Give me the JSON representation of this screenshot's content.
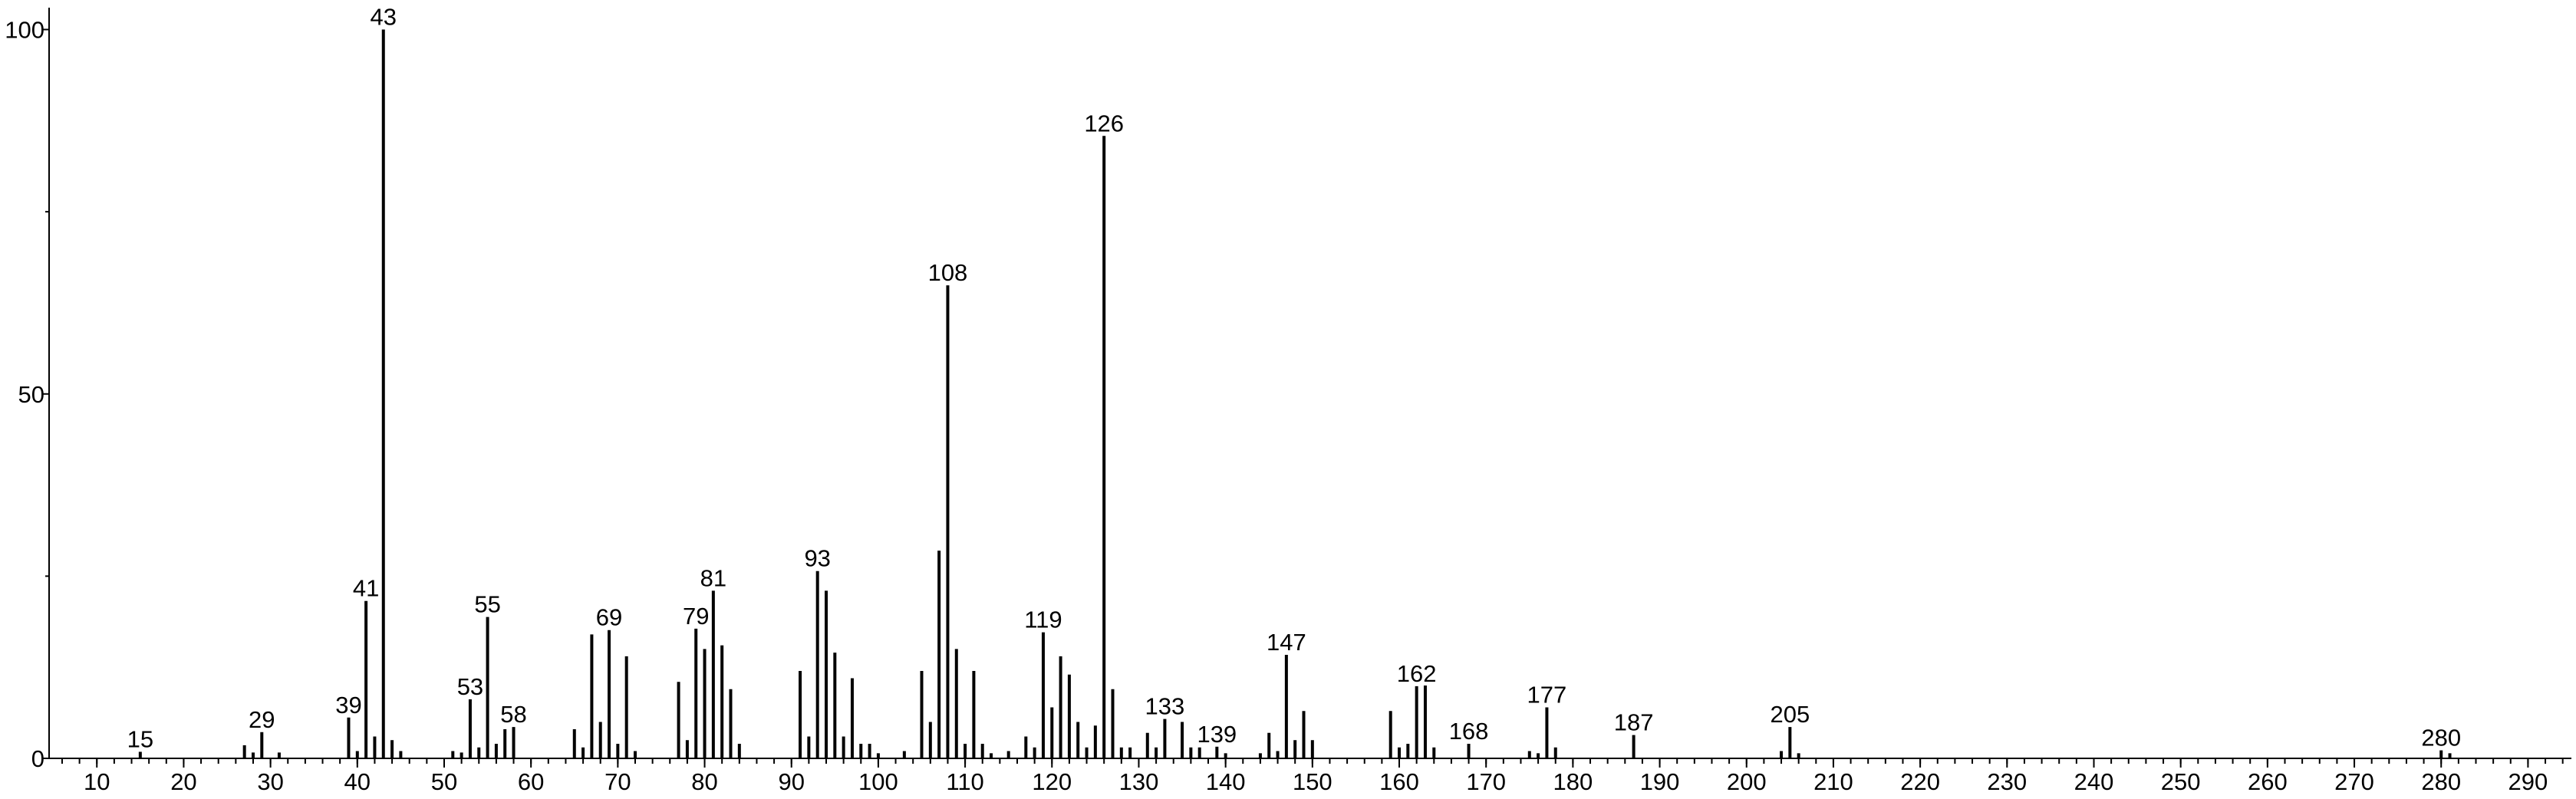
{
  "chart_data": {
    "type": "stick",
    "xlim": [
      4.5,
      295
    ],
    "ylim": [
      0,
      103
    ],
    "xticks": [
      10,
      20,
      30,
      40,
      50,
      60,
      70,
      80,
      90,
      100,
      110,
      120,
      130,
      140,
      150,
      160,
      170,
      180,
      190,
      200,
      210,
      220,
      230,
      240,
      250,
      260,
      270,
      280,
      290
    ],
    "x_minor_step": 2,
    "yticks": [
      0,
      50,
      100
    ],
    "y_minor_ticks": [
      25,
      75
    ],
    "series": [
      {
        "color": "#000000",
        "x_labels": true,
        "x": [
          15,
          29,
          39,
          41,
          43,
          53,
          55,
          58,
          69,
          79,
          81,
          93,
          108,
          119,
          126,
          133,
          139,
          147,
          162,
          168,
          177,
          187,
          205,
          280
        ],
        "values": [
          0.9,
          3.6,
          5.6,
          21.6,
          100,
          8.1,
          19.4,
          4.3,
          17.6,
          17.8,
          23,
          25.7,
          64.9,
          17.3,
          85.4,
          5.4,
          1.6,
          14.2,
          9.9,
          2,
          7,
          3.2,
          4.3,
          1.1
        ]
      },
      {
        "color": "#000000",
        "x_labels": false,
        "x": [
          27,
          28,
          31,
          40,
          42,
          44,
          45,
          51,
          52,
          54,
          56,
          57,
          65,
          66,
          67,
          68,
          70,
          71,
          72,
          77,
          78,
          80,
          82,
          83,
          84,
          91,
          92,
          94,
          95,
          96,
          97,
          98,
          99,
          100,
          103,
          105,
          106,
          107,
          109,
          110,
          111,
          112,
          113,
          115,
          117,
          118,
          120,
          121,
          122,
          123,
          124,
          125,
          127,
          128,
          129,
          131,
          132,
          135,
          136,
          137,
          140,
          144,
          145,
          146,
          148,
          149,
          150,
          159,
          160,
          161,
          163,
          164,
          175,
          176,
          178,
          204,
          206,
          281
        ],
        "values": [
          1.8,
          0.8,
          0.8,
          1,
          3,
          2.5,
          1,
          1,
          0.8,
          1.5,
          2,
          4,
          4,
          1.5,
          17,
          5,
          2,
          14,
          1,
          10.5,
          2.5,
          15,
          15.5,
          9.5,
          2,
          12,
          3,
          23,
          14.5,
          3,
          11,
          2,
          2,
          0.7,
          1,
          12,
          5,
          28.5,
          15,
          2,
          12,
          2,
          0.7,
          1,
          3,
          1.5,
          7,
          14,
          11.5,
          5,
          1.5,
          4.5,
          9.5,
          1.5,
          1.5,
          3.5,
          1.5,
          5,
          1.5,
          1.5,
          0.7,
          0.7,
          3.5,
          1,
          2.5,
          6.5,
          2.5,
          6.5,
          1.5,
          2,
          10,
          1.5,
          1,
          0.7,
          1.5,
          1,
          0.7,
          0.7
        ]
      }
    ]
  }
}
